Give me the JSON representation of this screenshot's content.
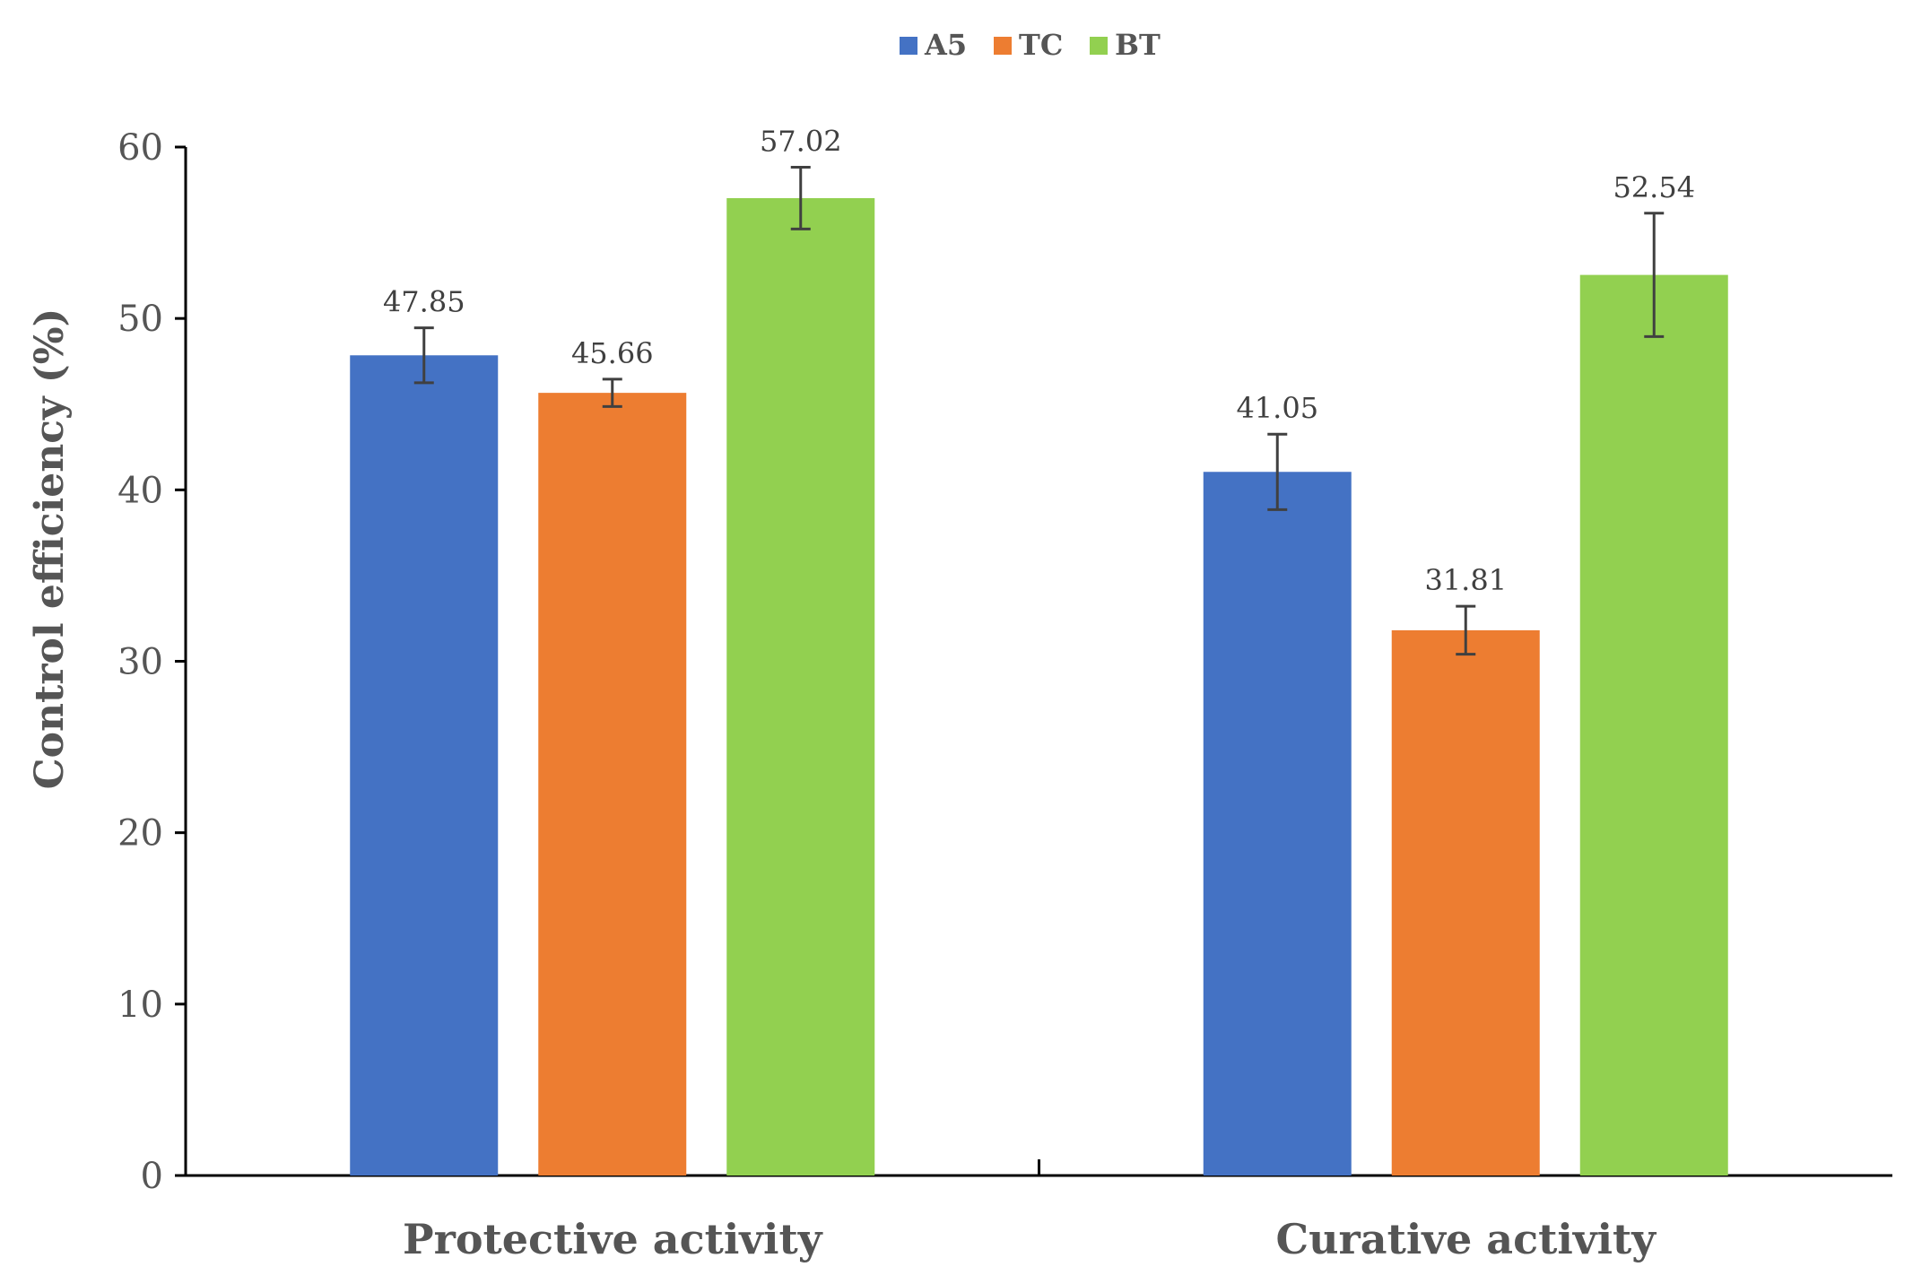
{
  "chart_data": {
    "type": "bar",
    "title": "",
    "xlabel": "",
    "ylabel": "Control efficiency (%)",
    "ylim": [
      0,
      60
    ],
    "yticks": [
      0,
      10,
      20,
      30,
      40,
      50,
      60
    ],
    "categories": [
      "Protective activity",
      "Curative activity"
    ],
    "legend_position": "top-center",
    "series": [
      {
        "name": "A5",
        "color": "#4472C4",
        "values": [
          47.85,
          41.05
        ],
        "errors": [
          1.6,
          2.2
        ],
        "labels": [
          "47.85",
          "41.05"
        ]
      },
      {
        "name": "TC",
        "color": "#ED7D31",
        "values": [
          45.66,
          31.81
        ],
        "errors": [
          0.8,
          1.4
        ],
        "labels": [
          "45.66",
          "31.81"
        ]
      },
      {
        "name": "BT",
        "color": "#92D050",
        "values": [
          57.02,
          52.54
        ],
        "errors": [
          1.8,
          3.6
        ],
        "labels": [
          "57.02",
          "52.54"
        ]
      }
    ]
  }
}
